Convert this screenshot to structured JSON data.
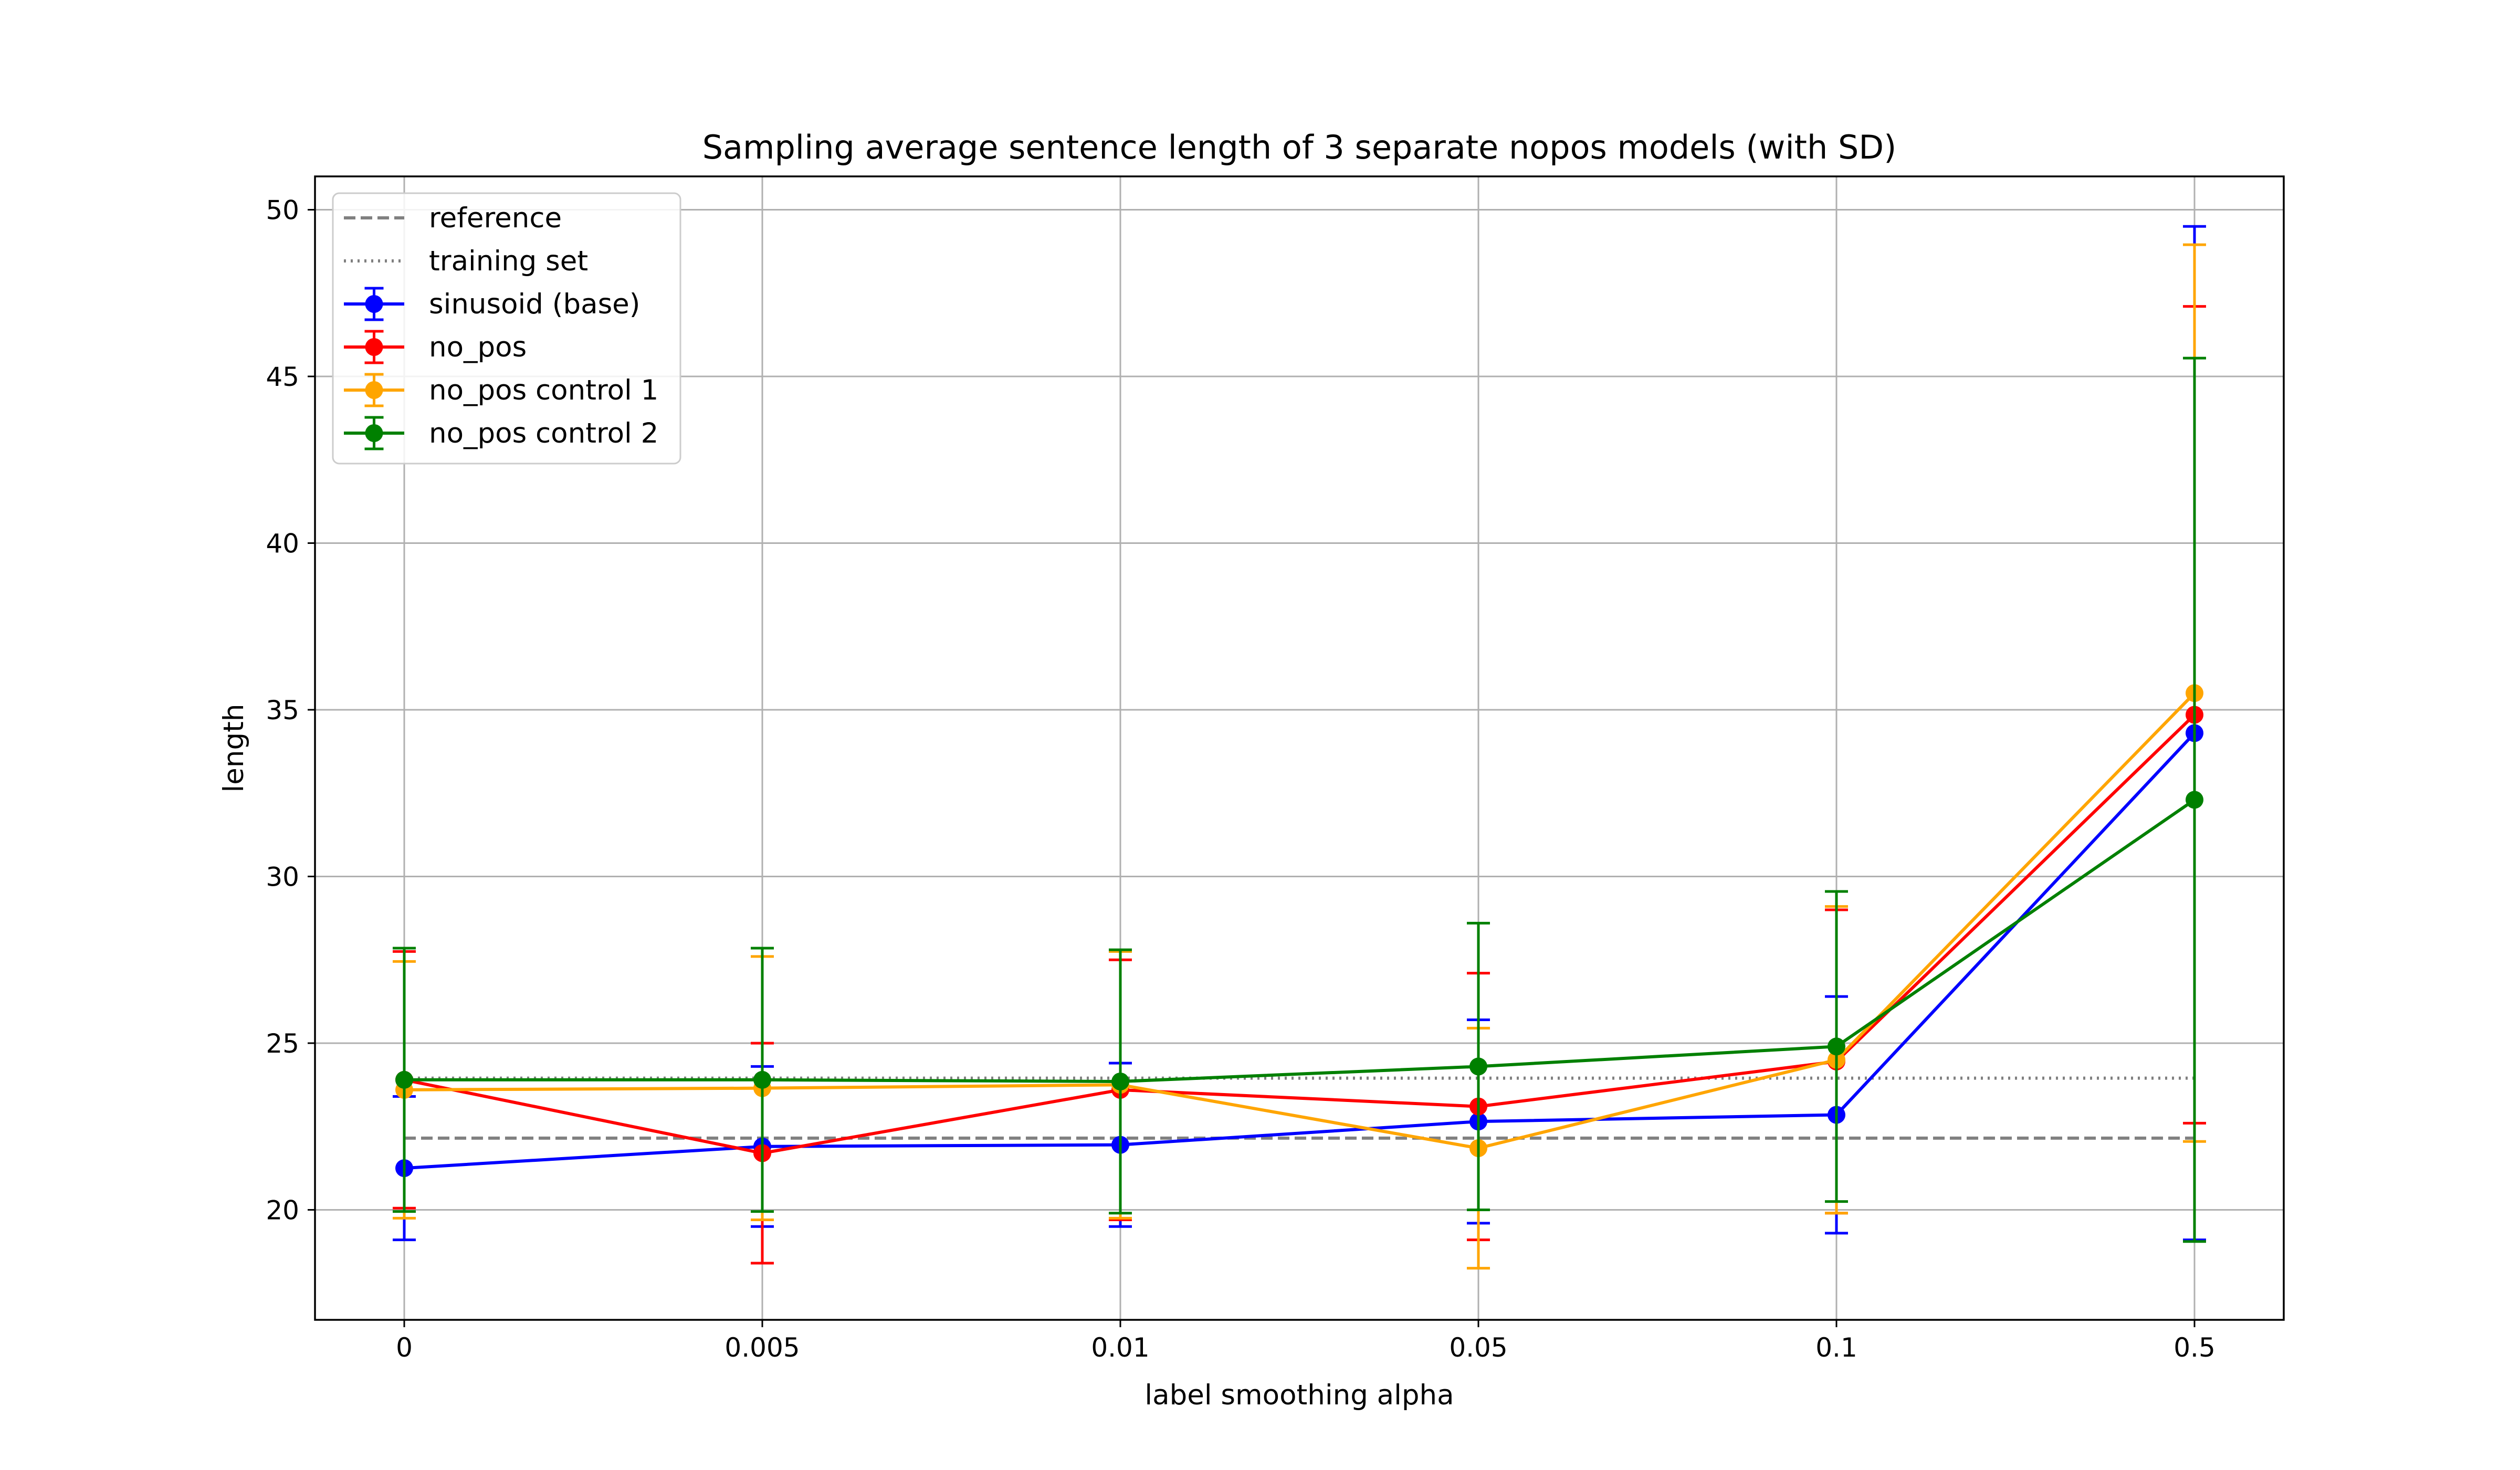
{
  "chart_data": {
    "type": "line",
    "title": "Sampling average sentence length of 3 separate nopos models (with SD)",
    "xlabel": "label smoothing alpha",
    "ylabel": "length",
    "categories": [
      "0",
      "0.005",
      "0.01",
      "0.05",
      "0.1",
      "0.5"
    ],
    "ylim": [
      16.7,
      51.0
    ],
    "yticks": [
      20,
      25,
      30,
      35,
      40,
      45,
      50
    ],
    "grid": true,
    "legend_position": "top-left",
    "reference_lines": [
      {
        "name": "reference",
        "value": 22.15,
        "color": "#808080",
        "style": "dashed"
      },
      {
        "name": "training set",
        "value": 23.95,
        "color": "#808080",
        "style": "dotted"
      }
    ],
    "series": [
      {
        "name": "sinusoid (base)",
        "color": "#0000ff",
        "values": [
          21.25,
          21.9,
          21.95,
          22.65,
          22.85,
          34.3
        ],
        "errors": [
          2.15,
          2.4,
          2.45,
          3.05,
          3.55,
          15.2
        ]
      },
      {
        "name": "no_pos",
        "color": "#ff0000",
        "values": [
          23.9,
          21.7,
          23.6,
          23.1,
          24.45,
          34.85
        ],
        "errors": [
          3.85,
          3.3,
          3.9,
          4.0,
          4.55,
          12.25
        ]
      },
      {
        "name": "no_pos control 1",
        "color": "#ffa500",
        "values": [
          23.6,
          23.65,
          23.75,
          21.85,
          24.5,
          35.5
        ],
        "errors": [
          3.85,
          3.95,
          4.0,
          3.6,
          4.6,
          13.45
        ]
      },
      {
        "name": "no_pos control 2",
        "color": "#008000",
        "values": [
          23.9,
          23.9,
          23.85,
          24.3,
          24.9,
          32.3
        ],
        "errors": [
          3.95,
          3.95,
          3.95,
          4.3,
          4.65,
          13.25
        ]
      }
    ]
  }
}
